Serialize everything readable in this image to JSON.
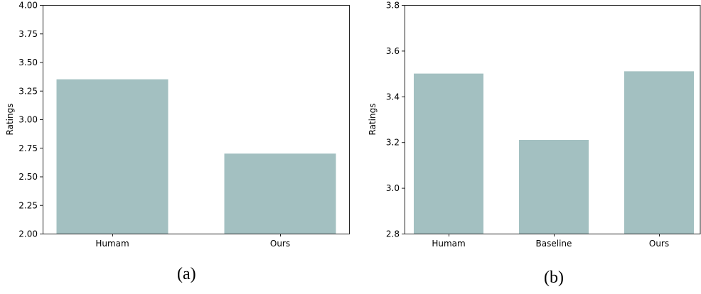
{
  "chart_data": [
    {
      "type": "bar",
      "panel_label": "(a)",
      "ylabel": "Ratings",
      "xlabel": "",
      "categories": [
        "Humam",
        "Ours"
      ],
      "values": [
        3.35,
        2.7
      ],
      "ylim": [
        2.0,
        4.0
      ],
      "yticks": [
        "2.00",
        "2.25",
        "2.50",
        "2.75",
        "3.00",
        "3.25",
        "3.50",
        "3.75",
        "4.00"
      ],
      "bar_color": "#a3c0c1",
      "grid": false,
      "legend": "none"
    },
    {
      "type": "bar",
      "panel_label": "(b)",
      "ylabel": "Ratings",
      "xlabel": "",
      "categories": [
        "Humam",
        "Baseline",
        "Ours"
      ],
      "values": [
        3.5,
        3.21,
        3.51
      ],
      "ylim": [
        2.8,
        3.8
      ],
      "yticks": [
        "2.8",
        "3.0",
        "3.2",
        "3.4",
        "3.6",
        "3.8"
      ],
      "bar_color": "#a3c0c1",
      "grid": false,
      "legend": "none"
    }
  ]
}
